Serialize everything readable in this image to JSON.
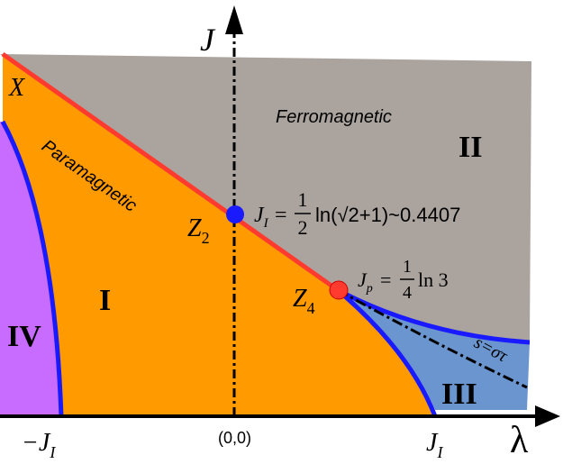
{
  "axes": {
    "y_label": "J",
    "x_label": "λ",
    "origin": "(0,0)",
    "x_left": {
      "main": "−J",
      "sub": "I"
    },
    "x_right": {
      "main": "J",
      "sub": "I"
    }
  },
  "phases": {
    "paramagnetic": "Paramagnetic",
    "ferromagnetic": "Ferromagnetic"
  },
  "regions": {
    "one": "I",
    "two": "II",
    "three": "III",
    "four": "IV"
  },
  "points": {
    "x": "X",
    "z2": {
      "main": "Z",
      "sub": "2"
    },
    "z4": {
      "main": "Z",
      "sub": "4"
    }
  },
  "formulas": {
    "ji": {
      "main": "J",
      "sub": "I",
      "eq": "=",
      "num": "1",
      "den": "2",
      "rest": "ln(√2+1)~0.4407"
    },
    "jp": {
      "main": "J",
      "sub": "p",
      "eq": "=",
      "num": "1",
      "den": "4",
      "rest": "ln 3"
    }
  },
  "curve_label": "s=στ"
}
